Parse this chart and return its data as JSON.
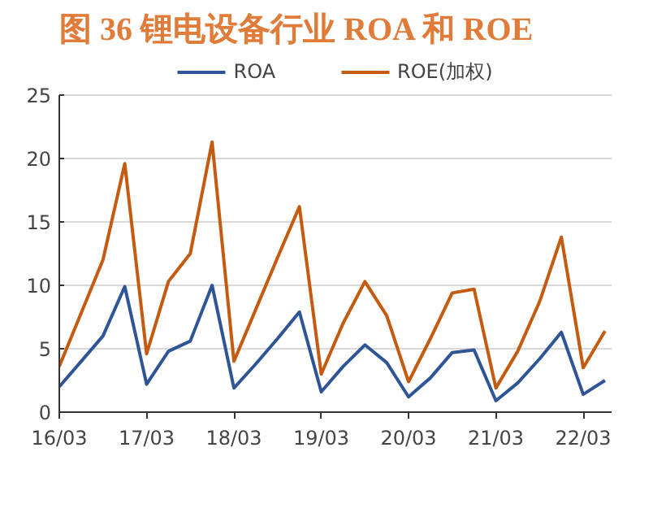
{
  "chart_data": {
    "type": "line",
    "title": "图 36 锂电设备行业 ROA 和 ROE",
    "categories": [
      "16/03",
      null,
      null,
      null,
      "17/03",
      null,
      null,
      null,
      "18/03",
      null,
      null,
      null,
      "19/03",
      null,
      null,
      null,
      "20/03",
      null,
      null,
      null,
      "21/03",
      null,
      null,
      null,
      "22/03",
      null
    ],
    "series": [
      {
        "name": "ROA",
        "color": "#2f5597",
        "values": [
          2.0,
          4.0,
          6.0,
          9.9,
          2.2,
          4.8,
          5.6,
          10.0,
          1.9,
          3.8,
          5.8,
          7.9,
          1.6,
          3.6,
          5.3,
          3.9,
          1.2,
          2.7,
          4.7,
          4.9,
          0.9,
          2.3,
          4.2,
          6.3,
          1.4,
          2.5
        ]
      },
      {
        "name": "ROE(加权)",
        "color": "#c55a11",
        "values": [
          3.6,
          7.8,
          12.0,
          19.6,
          4.6,
          10.3,
          12.5,
          21.3,
          4.0,
          8.1,
          12.2,
          16.2,
          3.0,
          7.0,
          10.3,
          7.6,
          2.4,
          5.8,
          9.4,
          9.7,
          1.9,
          4.8,
          8.7,
          13.8,
          3.5,
          6.4
        ]
      }
    ],
    "ylim": [
      0,
      25
    ],
    "yticks": [
      0,
      5,
      10,
      15,
      20,
      25
    ],
    "grid": "y",
    "legend": "top",
    "marker": "none",
    "line_style": "solid"
  }
}
